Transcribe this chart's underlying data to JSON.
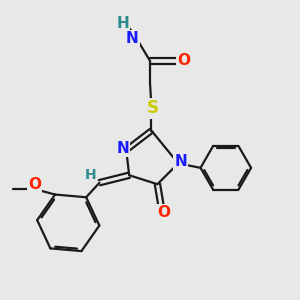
{
  "background_color": "#e8e8e8",
  "bond_color": "#1a1a1a",
  "colors": {
    "H": "#2e8b8b",
    "N": "#1a1aff",
    "O": "#ff2200",
    "S": "#cccc00",
    "C": "#1a1a1a"
  },
  "fontsize": 11
}
